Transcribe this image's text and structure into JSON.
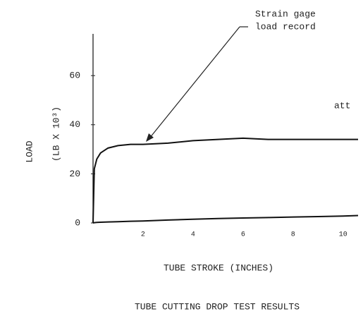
{
  "chart_data": {
    "type": "line",
    "title": "TUBE CUTTING DROP TEST RESULTS",
    "xlabel": "TUBE STROKE (INCHES)",
    "ylabel": [
      "LOAD",
      "(LB  X 10³)"
    ],
    "annotations": [
      "Strain gage",
      "load record",
      "att"
    ],
    "x": [
      0,
      0.05,
      0.15,
      0.3,
      0.6,
      1,
      1.5,
      2,
      3,
      4,
      5,
      6,
      7,
      8,
      9,
      10,
      10.6
    ],
    "series": [
      {
        "color": "#111111",
        "values": [
          0,
          22,
          26,
          28.5,
          30.5,
          31.5,
          32,
          32,
          32.5,
          33.5,
          34,
          34.5,
          34,
          34,
          34,
          34,
          34
        ]
      },
      {
        "color": "#111111",
        "values": [
          0,
          0.1,
          0.2,
          0.3,
          0.4,
          0.5,
          0.7,
          0.8,
          1.2,
          1.5,
          1.8,
          2,
          2.2,
          2.4,
          2.6,
          2.8,
          3
        ]
      }
    ],
    "xlim": [
      0,
      10.6
    ],
    "xticks": [
      2,
      4,
      6,
      8,
      10
    ],
    "ylim": [
      0,
      77
    ],
    "yticks": [
      0,
      20,
      40,
      60
    ],
    "grid": false
  }
}
